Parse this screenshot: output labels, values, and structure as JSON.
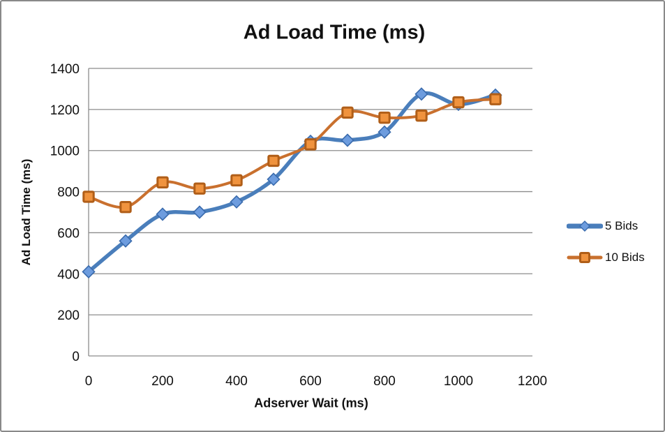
{
  "chart_data": {
    "type": "line",
    "title": "Ad Load Time (ms)",
    "xlabel": "Adserver Wait (ms)",
    "ylabel": "Ad Load Time (ms)",
    "x": [
      0,
      100,
      200,
      300,
      400,
      500,
      600,
      700,
      800,
      900,
      1000,
      1100
    ],
    "series": [
      {
        "name": "5 Bids",
        "marker": "diamond",
        "line_color": "#4A7EBB",
        "marker_fill": "#6D9CDE",
        "marker_stroke": "#3A6BAD",
        "values": [
          410,
          560,
          690,
          700,
          750,
          860,
          1045,
          1050,
          1090,
          1275,
          1225,
          1270
        ]
      },
      {
        "name": "10 Bids",
        "marker": "square",
        "line_color": "#C9702E",
        "marker_fill": "#F0933E",
        "marker_stroke": "#B05E18",
        "values": [
          775,
          725,
          845,
          815,
          855,
          950,
          1030,
          1185,
          1160,
          1170,
          1235,
          1250
        ]
      }
    ],
    "x_ticks": [
      0,
      200,
      400,
      600,
      800,
      1000,
      1200
    ],
    "y_ticks": [
      0,
      200,
      400,
      600,
      800,
      1000,
      1200,
      1400
    ],
    "xlim": [
      0,
      1200
    ],
    "ylim": [
      0,
      1400
    ],
    "grid": "horizontal",
    "grid_color": "#8C8C8C",
    "axis_color": "#8C8C8C",
    "smooth_lines": true,
    "legend_position": "right"
  }
}
